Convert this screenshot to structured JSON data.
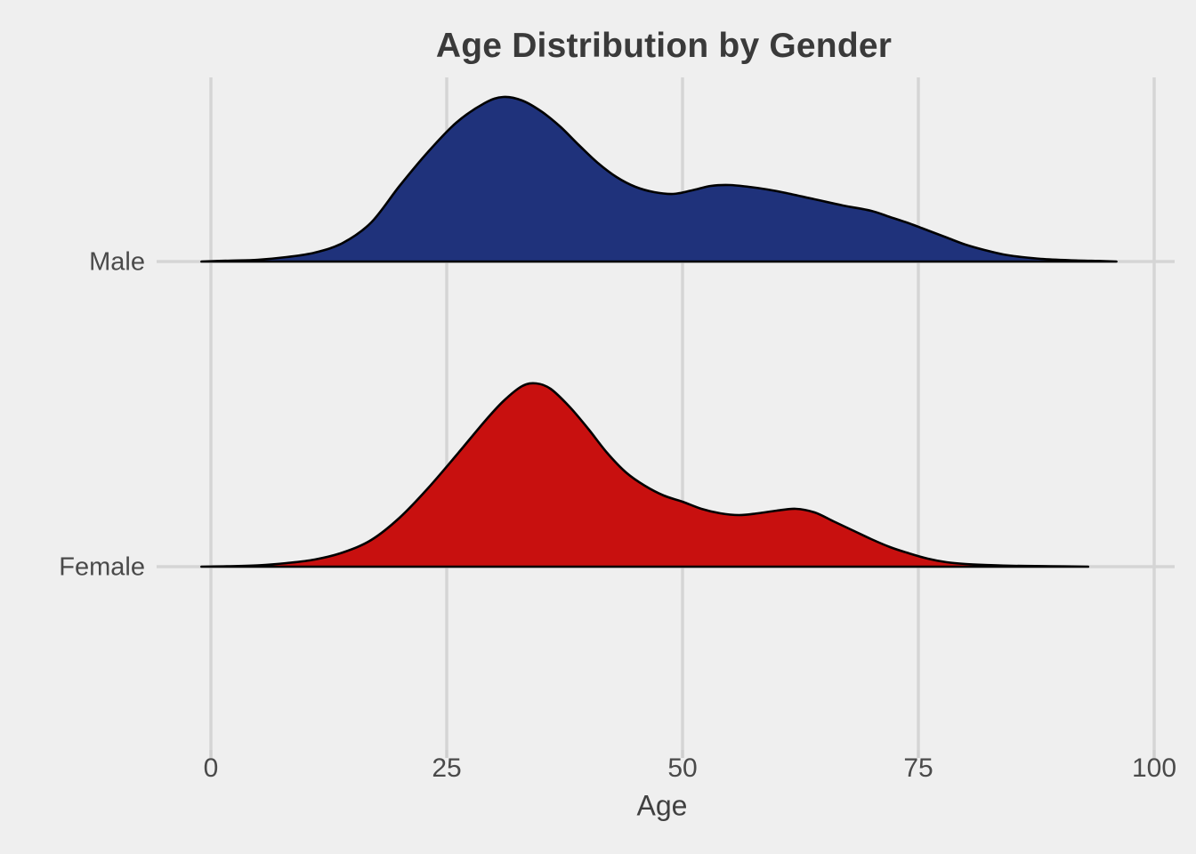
{
  "figure": {
    "background_color": "#efefef",
    "gridline_color": "#d5d5d5",
    "tick_color": "#cfcfcf",
    "axis_text_color": "#4a4a4a",
    "title_color": "#3a3a3a"
  },
  "chart_data": {
    "type": "area",
    "variant": "ridgeline_density",
    "title": "Age Distribution by Gender",
    "xlabel": "Age",
    "ylabel": "",
    "xlim": [
      0,
      100
    ],
    "x_ticks": [
      "0",
      "25",
      "50",
      "75",
      "100"
    ],
    "x_tick_values": [
      0,
      25,
      50,
      75,
      100
    ],
    "categories": [
      "Male",
      "Female"
    ],
    "grid": true,
    "legend": false,
    "outline_color": "#000000",
    "series": [
      {
        "name": "Male",
        "color": "#1f327b",
        "points": [
          [
            -1,
            0
          ],
          [
            2,
            1
          ],
          [
            5,
            2
          ],
          [
            8,
            5
          ],
          [
            11,
            10
          ],
          [
            14,
            21
          ],
          [
            17,
            44
          ],
          [
            20,
            85
          ],
          [
            23,
            123
          ],
          [
            26,
            156
          ],
          [
            29,
            178
          ],
          [
            31,
            185
          ],
          [
            33,
            181
          ],
          [
            35,
            169
          ],
          [
            37,
            152
          ],
          [
            39,
            131
          ],
          [
            41,
            111
          ],
          [
            43,
            95
          ],
          [
            45,
            84
          ],
          [
            47,
            78
          ],
          [
            49,
            76
          ],
          [
            51,
            80
          ],
          [
            53,
            85
          ],
          [
            55,
            86
          ],
          [
            57,
            84
          ],
          [
            59,
            81
          ],
          [
            61,
            77
          ],
          [
            64,
            70
          ],
          [
            67,
            63
          ],
          [
            70,
            57
          ],
          [
            72,
            50
          ],
          [
            74,
            43
          ],
          [
            76,
            35
          ],
          [
            78,
            27
          ],
          [
            80,
            19
          ],
          [
            82,
            13
          ],
          [
            84,
            8
          ],
          [
            86,
            5
          ],
          [
            88,
            3
          ],
          [
            91,
            1.5
          ],
          [
            94,
            0.7
          ],
          [
            96,
            0
          ]
        ]
      },
      {
        "name": "Female",
        "color": "#c8100f",
        "points": [
          [
            -1,
            0
          ],
          [
            2,
            0.5
          ],
          [
            5,
            1.5
          ],
          [
            8,
            4
          ],
          [
            11,
            8
          ],
          [
            14,
            16
          ],
          [
            17,
            30
          ],
          [
            20,
            55
          ],
          [
            23,
            88
          ],
          [
            26,
            125
          ],
          [
            29,
            163
          ],
          [
            31,
            186
          ],
          [
            33,
            203
          ],
          [
            34.5,
            206
          ],
          [
            36,
            200
          ],
          [
            38,
            180
          ],
          [
            40,
            155
          ],
          [
            42,
            128
          ],
          [
            44,
            106
          ],
          [
            46,
            91
          ],
          [
            48,
            80
          ],
          [
            50,
            73
          ],
          [
            52,
            65
          ],
          [
            54,
            60
          ],
          [
            56,
            58
          ],
          [
            58,
            60
          ],
          [
            60,
            63
          ],
          [
            62,
            65
          ],
          [
            64,
            61
          ],
          [
            66,
            51
          ],
          [
            68,
            41
          ],
          [
            70,
            31
          ],
          [
            72,
            22
          ],
          [
            74,
            15
          ],
          [
            76,
            9
          ],
          [
            78,
            5
          ],
          [
            80,
            3
          ],
          [
            82,
            2
          ],
          [
            85,
            1
          ],
          [
            89,
            0.5
          ],
          [
            93,
            0
          ]
        ]
      }
    ]
  }
}
